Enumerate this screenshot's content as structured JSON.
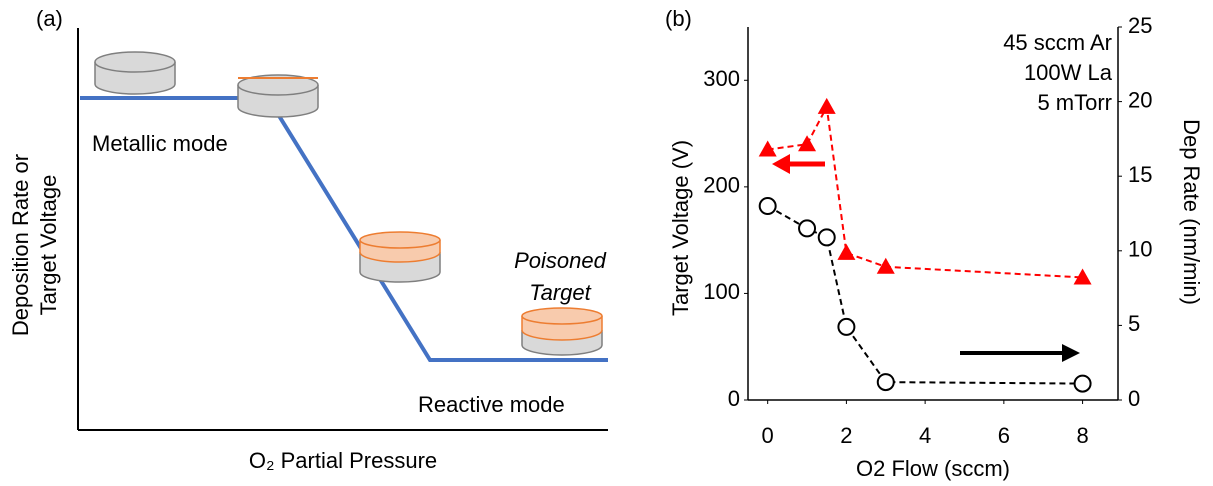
{
  "diagram": {
    "label": "(a)",
    "y_label": [
      "Deposition Rate or",
      "Target Voltage"
    ],
    "x_label": "O₂ Partial Pressure",
    "annotations": {
      "metallic": "Metallic mode",
      "reactive": "Reactive mode",
      "poisoned": [
        "Poisoned",
        "Target"
      ]
    }
  },
  "chart_data": {
    "type": "line",
    "label": "(b)",
    "x_label": "O2 Flow (sccm)",
    "y_label": "Target Voltage (V)",
    "y2_label": "Dep Rate (nm/min)",
    "annotations": [
      "45 sccm Ar",
      "100W La",
      "5 mTorr"
    ],
    "x": [
      0,
      1,
      1.5,
      2,
      3,
      8
    ],
    "xlim": [
      -0.5,
      8.9
    ],
    "xticks": [
      0,
      2,
      4,
      6,
      8
    ],
    "ylim": [
      0,
      350
    ],
    "yticks": [
      0,
      100,
      200,
      300
    ],
    "y2lim": [
      0,
      25
    ],
    "y2ticks": [
      0,
      5,
      10,
      15,
      20,
      25
    ],
    "grid": false,
    "series": [
      {
        "color": "#ff0000",
        "values": [
          235,
          240,
          275,
          138,
          125,
          115
        ]
      },
      {
        "color": "#000000",
        "values": [
          13.0,
          11.5,
          10.9,
          4.9,
          1.2,
          1.1
        ],
        "axis": "y2"
      }
    ]
  }
}
